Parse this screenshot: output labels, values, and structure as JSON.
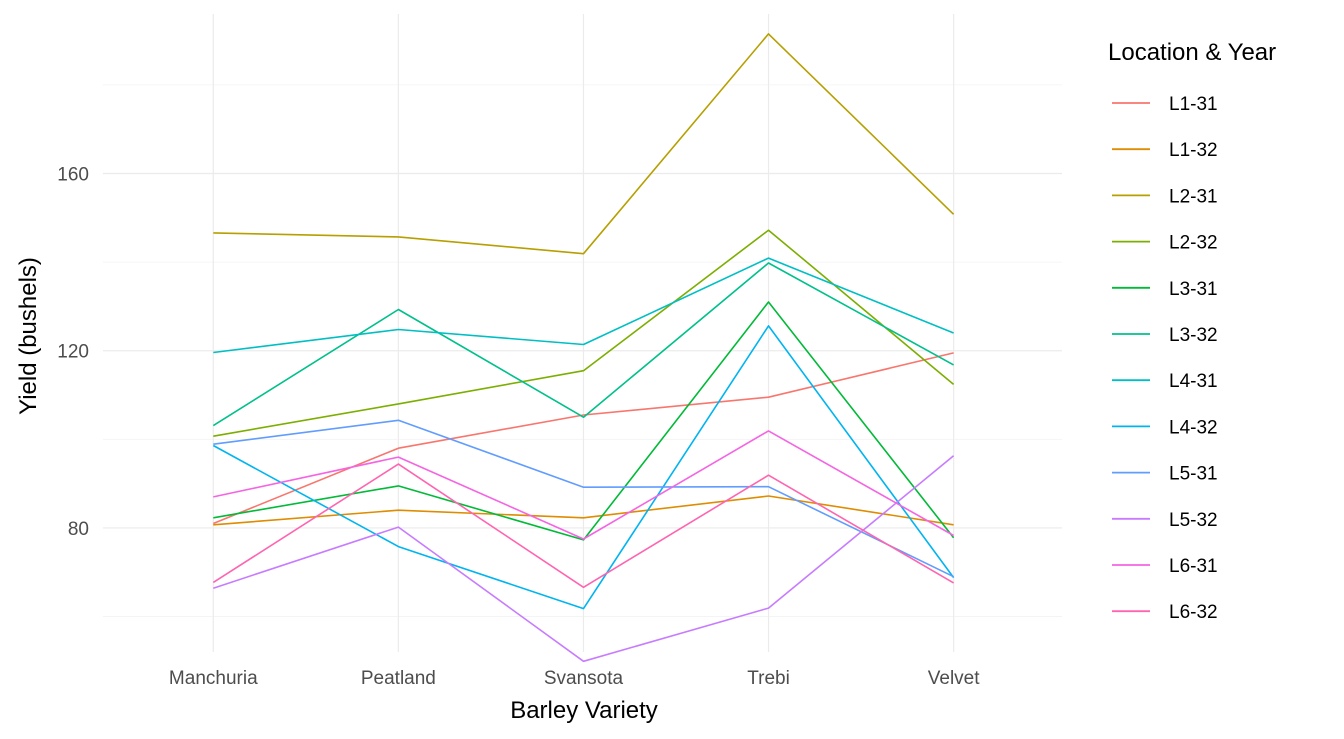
{
  "chart_data": {
    "type": "line",
    "xlabel": "Barley Variety",
    "ylabel": "Yield (bushels)",
    "legend_title": "Location & Year",
    "legend_position": "right",
    "grid": true,
    "categories": [
      "Manchuria",
      "Peatland",
      "Svansota",
      "Trebi",
      "Velvet"
    ],
    "ylim": [
      52,
      196
    ],
    "y_major_ticks": [
      80,
      120,
      160
    ],
    "y_minor_ticks": [
      60,
      100,
      140,
      180
    ],
    "series": [
      {
        "name": "L1-31",
        "color": "#F8766D",
        "values": [
          81.0,
          98.0,
          105.5,
          109.5,
          119.5
        ]
      },
      {
        "name": "L1-32",
        "color": "#DE8C00",
        "values": [
          80.7,
          84.0,
          82.3,
          87.2,
          80.7
        ]
      },
      {
        "name": "L2-31",
        "color": "#B79F00",
        "values": [
          146.6,
          145.7,
          141.9,
          191.5,
          150.8
        ]
      },
      {
        "name": "L2-32",
        "color": "#7CAE00",
        "values": [
          100.7,
          108.0,
          115.5,
          147.2,
          112.4
        ]
      },
      {
        "name": "L3-31",
        "color": "#00BA38",
        "values": [
          82.3,
          89.5,
          77.3,
          131.0,
          77.8
        ]
      },
      {
        "name": "L3-32",
        "color": "#00C08B",
        "values": [
          103.1,
          129.3,
          105.0,
          139.8,
          116.8
        ]
      },
      {
        "name": "L4-31",
        "color": "#00BFC4",
        "values": [
          119.6,
          124.8,
          121.4,
          140.9,
          124.0
        ]
      },
      {
        "name": "L4-32",
        "color": "#00B4F0",
        "values": [
          98.6,
          75.8,
          61.8,
          125.6,
          68.8
        ]
      },
      {
        "name": "L5-31",
        "color": "#619CFF",
        "values": [
          98.9,
          104.3,
          89.2,
          89.3,
          69.0
        ]
      },
      {
        "name": "L5-32",
        "color": "#C77CFF",
        "values": [
          66.4,
          80.2,
          49.9,
          61.9,
          96.3
        ]
      },
      {
        "name": "L6-31",
        "color": "#F564E3",
        "values": [
          87.0,
          96.0,
          77.5,
          101.9,
          78.3
        ]
      },
      {
        "name": "L6-32",
        "color": "#FF64B0",
        "values": [
          67.7,
          94.4,
          66.6,
          91.9,
          67.6
        ]
      }
    ]
  }
}
